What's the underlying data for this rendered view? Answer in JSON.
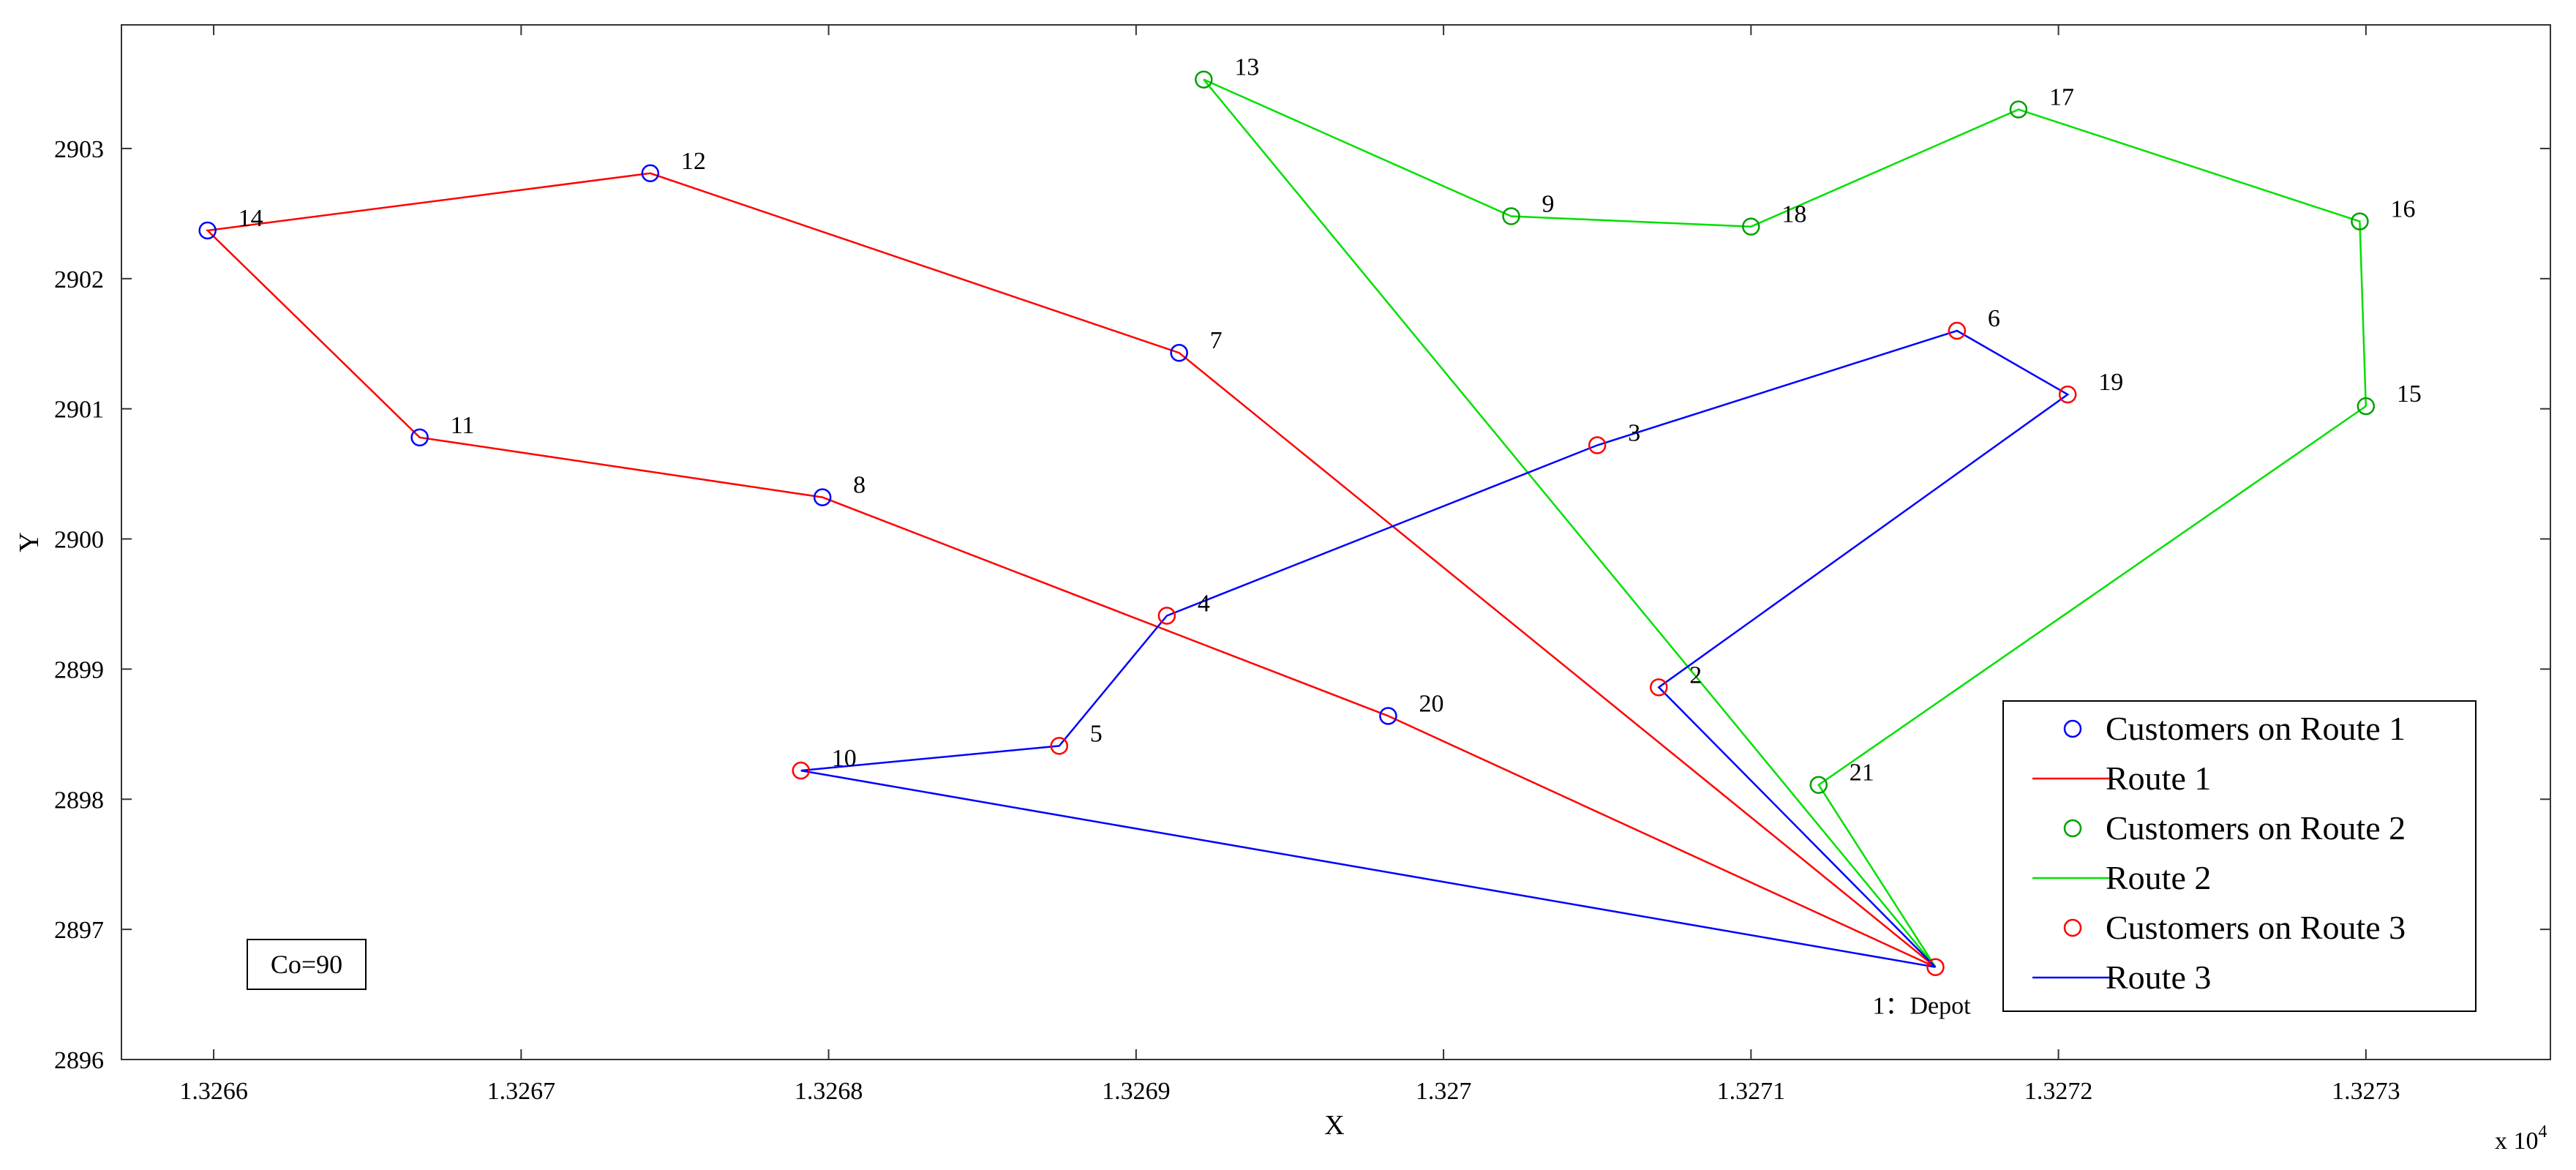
{
  "chart_data": {
    "type": "scatter",
    "xlabel": "X",
    "ylabel": "Y",
    "x_exponent_label": "x 10",
    "x_exponent_power": "4",
    "x_ticks": [
      {
        "value": 13266,
        "label": "1.3266"
      },
      {
        "value": 13267,
        "label": "1.3267"
      },
      {
        "value": 13268,
        "label": "1.3268"
      },
      {
        "value": 13269,
        "label": "1.3269"
      },
      {
        "value": 13270,
        "label": "1.327"
      },
      {
        "value": 13271,
        "label": "1.3271"
      },
      {
        "value": 13272,
        "label": "1.3272"
      },
      {
        "value": 13273,
        "label": "1.3273"
      }
    ],
    "y_ticks": [
      {
        "value": 2896,
        "label": "2896"
      },
      {
        "value": 2897,
        "label": "2897"
      },
      {
        "value": 2898,
        "label": "2898"
      },
      {
        "value": 2899,
        "label": "2899"
      },
      {
        "value": 2900,
        "label": "2900"
      },
      {
        "value": 2901,
        "label": "2901"
      },
      {
        "value": 2902,
        "label": "2902"
      },
      {
        "value": 2903,
        "label": "2903"
      }
    ],
    "xlim": [
      13265.7,
      13273.6
    ],
    "ylim": [
      2896,
      2903.95
    ],
    "grid": false,
    "legend_position": "bottom-right",
    "annotation": "Co=90",
    "points": [
      {
        "id": "1",
        "label": "1：Depot",
        "x": 13271.6,
        "y": 2896.71,
        "color": "#ff0000"
      },
      {
        "id": "2",
        "label": "2",
        "x": 13270.7,
        "y": 2898.86,
        "color": "#ff0000"
      },
      {
        "id": "3",
        "label": "3",
        "x": 13270.5,
        "y": 2900.72,
        "color": "#ff0000"
      },
      {
        "id": "4",
        "label": "4",
        "x": 13269.1,
        "y": 2899.41,
        "color": "#ff0000"
      },
      {
        "id": "5",
        "label": "5",
        "x": 13268.75,
        "y": 2898.41,
        "color": "#ff0000"
      },
      {
        "id": "6",
        "label": "6",
        "x": 13271.67,
        "y": 2901.6,
        "color": "#ff0000"
      },
      {
        "id": "7",
        "label": "7",
        "x": 13269.14,
        "y": 2901.43,
        "color": "#0000ff"
      },
      {
        "id": "8",
        "label": "8",
        "x": 13267.98,
        "y": 2900.32,
        "color": "#0000ff"
      },
      {
        "id": "9",
        "label": "9",
        "x": 13270.22,
        "y": 2902.48,
        "color": "#00a000"
      },
      {
        "id": "10",
        "label": "10",
        "x": 13267.91,
        "y": 2898.22,
        "color": "#ff0000"
      },
      {
        "id": "11",
        "label": "11",
        "x": 13266.67,
        "y": 2900.78,
        "color": "#0000ff"
      },
      {
        "id": "12",
        "label": "12",
        "x": 13267.42,
        "y": 2902.81,
        "color": "#0000ff"
      },
      {
        "id": "13",
        "label": "13",
        "x": 13269.22,
        "y": 2903.53,
        "color": "#00a000"
      },
      {
        "id": "14",
        "label": "14",
        "x": 13265.98,
        "y": 2902.37,
        "color": "#0000ff"
      },
      {
        "id": "15",
        "label": "15",
        "x": 13273.0,
        "y": 2901.02,
        "color": "#00a000"
      },
      {
        "id": "16",
        "label": "16",
        "x": 13272.98,
        "y": 2902.44,
        "color": "#00a000"
      },
      {
        "id": "17",
        "label": "17",
        "x": 13271.87,
        "y": 2903.3,
        "color": "#00a000"
      },
      {
        "id": "18",
        "label": "18",
        "x": 13271.0,
        "y": 2902.4,
        "color": "#00a000"
      },
      {
        "id": "19",
        "label": "19",
        "x": 13272.03,
        "y": 2901.11,
        "color": "#ff0000"
      },
      {
        "id": "20",
        "label": "20",
        "x": 13269.82,
        "y": 2898.64,
        "color": "#0000ff"
      },
      {
        "id": "21",
        "label": "21",
        "x": 13271.22,
        "y": 2898.11,
        "color": "#00a000"
      }
    ],
    "routes": [
      {
        "name": "Route 1",
        "color": "#ff0000",
        "stops": [
          "1",
          "7",
          "12",
          "14",
          "11",
          "8",
          "20",
          "1"
        ]
      },
      {
        "name": "Route 2",
        "color": "#00e000",
        "stops": [
          "1",
          "13",
          "9",
          "18",
          "17",
          "16",
          "15",
          "21",
          "1"
        ]
      },
      {
        "name": "Route 3",
        "color": "#0000ff",
        "stops": [
          "1",
          "10",
          "5",
          "4",
          "3",
          "6",
          "19",
          "2",
          "1"
        ]
      }
    ],
    "legend": [
      {
        "kind": "marker",
        "label": "Customers on Route 1",
        "color": "#0000ff"
      },
      {
        "kind": "line",
        "label": "Route 1",
        "color": "#ff0000"
      },
      {
        "kind": "marker",
        "label": "Customers on Route 2",
        "color": "#00a000"
      },
      {
        "kind": "line",
        "label": "Route 2",
        "color": "#00e000"
      },
      {
        "kind": "marker",
        "label": "Customers on Route 3",
        "color": "#ff0000"
      },
      {
        "kind": "line",
        "label": "Route 3",
        "color": "#0000ff"
      }
    ]
  }
}
